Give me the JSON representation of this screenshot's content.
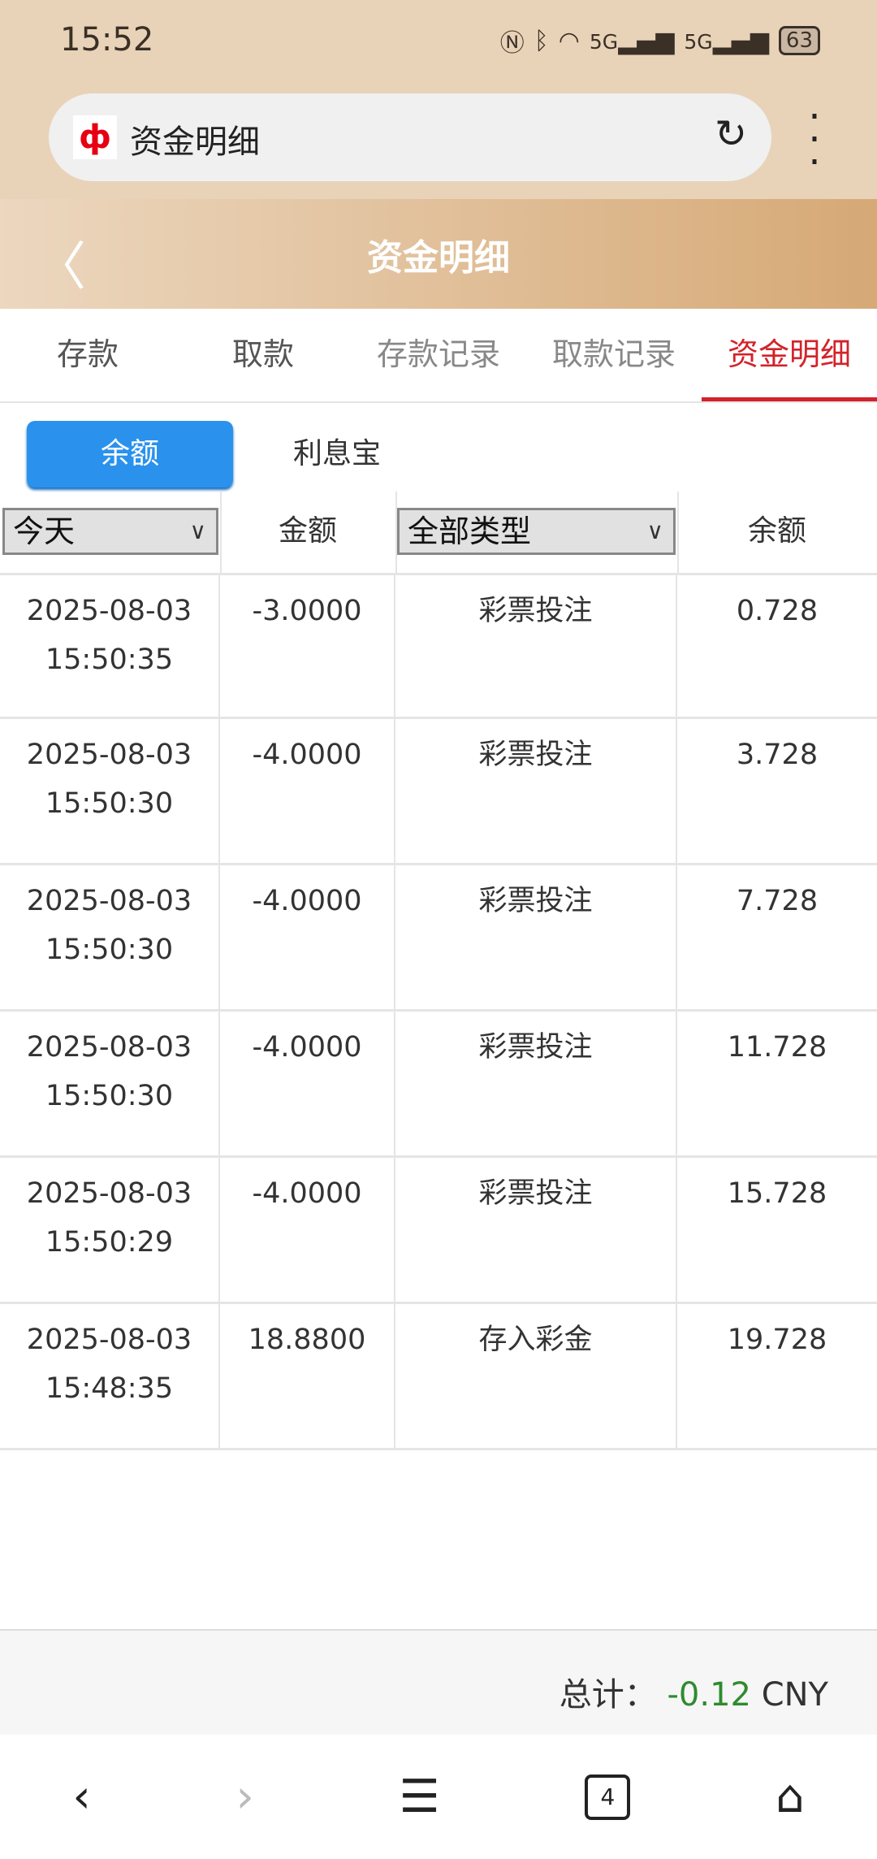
{
  "status_bar": {
    "time": "15:52",
    "battery": "63",
    "signal1": "5G",
    "signal2": "5G"
  },
  "browser": {
    "url_title": "资金明细",
    "tab_count": "4"
  },
  "header": {
    "title": "资金明细"
  },
  "tabs": [
    {
      "label": "存款"
    },
    {
      "label": "取款"
    },
    {
      "label": "存款记录"
    },
    {
      "label": "取款记录"
    },
    {
      "label": "资金明细",
      "active": true
    }
  ],
  "subtabs": [
    {
      "label": "余额",
      "active": true
    },
    {
      "label": "利息宝"
    }
  ],
  "filters": {
    "date": "今天",
    "type": "全部类型",
    "amount_label": "金额",
    "balance_label": "余额"
  },
  "rows": [
    {
      "date": "2025-08-03",
      "time": "15:50:35",
      "amount": "-3.0000",
      "type": "彩票投注",
      "balance": "0.728"
    },
    {
      "date": "2025-08-03",
      "time": "15:50:30",
      "amount": "-4.0000",
      "type": "彩票投注",
      "balance": "3.728"
    },
    {
      "date": "2025-08-03",
      "time": "15:50:30",
      "amount": "-4.0000",
      "type": "彩票投注",
      "balance": "7.728"
    },
    {
      "date": "2025-08-03",
      "time": "15:50:30",
      "amount": "-4.0000",
      "type": "彩票投注",
      "balance": "11.728"
    },
    {
      "date": "2025-08-03",
      "time": "15:50:29",
      "amount": "-4.0000",
      "type": "彩票投注",
      "balance": "15.728"
    },
    {
      "date": "2025-08-03",
      "time": "15:48:35",
      "amount": "18.8800",
      "type": "存入彩金",
      "balance": "19.728"
    }
  ],
  "footer": {
    "total_label": "总计：",
    "total_value": "-0.12",
    "currency": "CNY"
  },
  "colors": {
    "accent": "#d2232a",
    "button": "#2a92ec",
    "total": "#2e8b2e"
  }
}
